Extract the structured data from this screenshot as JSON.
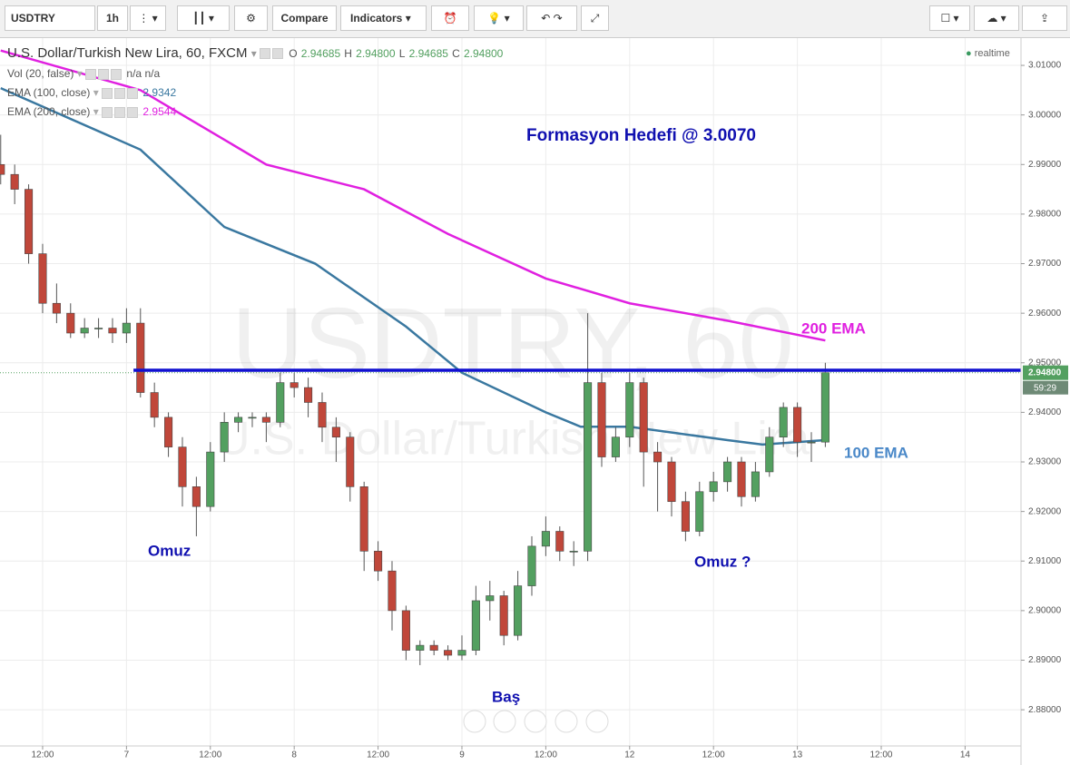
{
  "toolbar": {
    "symbol": "USDTRY",
    "interval": "1h",
    "compare": "Compare",
    "indicators": "Indicators"
  },
  "legend": {
    "title": "U.S. Dollar/Turkish New Lira, 60, FXCM",
    "o_label": "O",
    "o": "2.94685",
    "h_label": "H",
    "h": "2.94800",
    "l_label": "L",
    "l": "2.94685",
    "c_label": "C",
    "c": "2.94800",
    "vol": "Vol (20, false)",
    "vol_a": "n/a",
    "vol_b": "n/a",
    "ema100": "EMA (100, close)",
    "ema100_value": "2.9342",
    "ema200": "EMA (200, close)",
    "ema200_value": "2.9544",
    "realtime": "realtime"
  },
  "watermark": {
    "symbol": "USDTRY, 60",
    "name": "U.S. Dollar/Turkish New Lira"
  },
  "chart_data": {
    "type": "candlestick",
    "x": [
      6,
      8,
      10,
      12,
      14,
      16,
      18,
      20,
      22,
      24,
      26,
      28,
      30,
      32,
      34,
      36,
      38,
      40,
      42,
      44,
      46,
      48,
      50,
      52,
      54,
      56,
      58,
      60,
      62,
      64,
      66,
      68,
      70,
      72,
      74,
      76,
      78,
      80,
      82,
      84,
      86,
      88,
      90,
      92,
      94,
      96,
      98,
      100,
      102,
      104,
      106,
      108,
      110,
      112,
      114,
      116,
      118,
      120,
      122,
      124
    ],
    "open": [
      2.99,
      2.988,
      2.985,
      2.972,
      2.962,
      2.96,
      2.956,
      2.957,
      2.957,
      2.956,
      2.958,
      2.944,
      2.939,
      2.933,
      2.925,
      2.921,
      2.932,
      2.938,
      2.939,
      2.939,
      2.938,
      2.946,
      2.945,
      2.942,
      2.937,
      2.935,
      2.925,
      2.912,
      2.908,
      2.9,
      2.892,
      2.893,
      2.892,
      2.891,
      2.892,
      2.902,
      2.903,
      2.895,
      2.905,
      2.913,
      2.916,
      2.912,
      2.912,
      2.946,
      2.931,
      2.935,
      2.946,
      2.932,
      2.93,
      2.922,
      2.916,
      2.924,
      2.926,
      2.93,
      2.923,
      2.928,
      2.935,
      2.941,
      2.934,
      2.934
    ],
    "high": [
      2.996,
      2.99,
      2.986,
      2.974,
      2.966,
      2.962,
      2.959,
      2.959,
      2.959,
      2.961,
      2.961,
      2.946,
      2.94,
      2.935,
      2.927,
      2.934,
      2.94,
      2.94,
      2.94,
      2.94,
      2.948,
      2.948,
      2.947,
      2.944,
      2.939,
      2.936,
      2.926,
      2.914,
      2.91,
      2.901,
      2.894,
      2.894,
      2.893,
      2.895,
      2.905,
      2.906,
      2.904,
      2.908,
      2.915,
      2.919,
      2.917,
      2.914,
      2.96,
      2.948,
      2.937,
      2.948,
      2.947,
      2.934,
      2.931,
      2.924,
      2.926,
      2.928,
      2.931,
      2.931,
      2.93,
      2.937,
      2.942,
      2.942,
      2.936,
      2.95
    ],
    "low": [
      2.986,
      2.982,
      2.97,
      2.96,
      2.958,
      2.955,
      2.955,
      2.955,
      2.954,
      2.954,
      2.943,
      2.937,
      2.931,
      2.921,
      2.915,
      2.92,
      2.93,
      2.936,
      2.937,
      2.934,
      2.937,
      2.943,
      2.939,
      2.934,
      2.93,
      2.922,
      2.908,
      2.906,
      2.896,
      2.89,
      2.889,
      2.891,
      2.89,
      2.89,
      2.891,
      2.898,
      2.893,
      2.894,
      2.903,
      2.911,
      2.91,
      2.909,
      2.91,
      2.929,
      2.93,
      2.933,
      2.925,
      2.92,
      2.919,
      2.914,
      2.915,
      2.922,
      2.924,
      2.921,
      2.922,
      2.927,
      2.933,
      2.931,
      2.93,
      2.933
    ],
    "close": [
      2.988,
      2.985,
      2.972,
      2.962,
      2.96,
      2.956,
      2.957,
      2.957,
      2.956,
      2.958,
      2.944,
      2.939,
      2.933,
      2.925,
      2.921,
      2.932,
      2.938,
      2.939,
      2.939,
      2.938,
      2.946,
      2.945,
      2.942,
      2.937,
      2.935,
      2.925,
      2.912,
      2.908,
      2.9,
      2.892,
      2.893,
      2.892,
      2.891,
      2.892,
      2.902,
      2.903,
      2.895,
      2.905,
      2.913,
      2.916,
      2.912,
      2.912,
      2.946,
      2.931,
      2.935,
      2.946,
      2.932,
      2.93,
      2.922,
      2.916,
      2.924,
      2.926,
      2.93,
      2.923,
      2.928,
      2.935,
      2.941,
      2.934,
      2.934,
      2.948
    ],
    "up_color": "#53a060",
    "down_color": "#c0473a",
    "lines": [
      {
        "name": "EMA (200, close)",
        "color": "#e020e0",
        "x": [
          6,
          26,
          44,
          58,
          70,
          84,
          96,
          110,
          124
        ],
        "values": [
          3.013,
          3.005,
          2.99,
          2.985,
          2.976,
          2.967,
          2.962,
          2.9585,
          2.9545
        ]
      },
      {
        "name": "EMA (100, close)",
        "color": "#3a78a0",
        "x": [
          6,
          26,
          38,
          51,
          64,
          72,
          84,
          89,
          96,
          110,
          115,
          124
        ],
        "values": [
          3.0054,
          2.993,
          2.9774,
          2.97,
          2.9573,
          2.948,
          2.94,
          2.9371,
          2.9371,
          2.9344,
          2.9335,
          2.9344
        ]
      }
    ],
    "neckline": {
      "value": 2.9485,
      "x_start": 25,
      "color": "#1010d0"
    },
    "last_price": {
      "value": 2.948,
      "label": "2.94800"
    },
    "countdown": "59:29",
    "annotations": [
      {
        "text": "Formasyon Hedefi @ 3.0070",
        "color": "#1010b0"
      },
      {
        "text": "200 EMA",
        "color": "#e020e0"
      },
      {
        "text": "100 EMA",
        "color": "#4a88c8"
      },
      {
        "text": "Omuz",
        "color": "#1010b0"
      },
      {
        "text": "Omuz ?",
        "color": "#1010b0"
      },
      {
        "text": "Baş",
        "color": "#1010b0"
      }
    ],
    "xlim": [
      5.9,
      152
    ],
    "ylim": [
      2.8727,
      3.0155
    ],
    "xticks": [
      {
        "value": 12,
        "label": "12:00"
      },
      {
        "value": 24,
        "label": "7"
      },
      {
        "value": 36,
        "label": "12:00"
      },
      {
        "value": 48,
        "label": "8"
      },
      {
        "value": 60,
        "label": "12:00"
      },
      {
        "value": 72,
        "label": "9"
      },
      {
        "value": 84,
        "label": "12:00"
      },
      {
        "value": 96,
        "label": "12"
      },
      {
        "value": 108,
        "label": "12:00"
      },
      {
        "value": 120,
        "label": "13"
      },
      {
        "value": 132,
        "label": "12:00"
      },
      {
        "value": 144,
        "label": "14"
      }
    ],
    "yticks": [
      {
        "value": 2.88,
        "label": "2.88000"
      },
      {
        "value": 2.89,
        "label": "2.89000"
      },
      {
        "value": 2.9,
        "label": "2.90000"
      },
      {
        "value": 2.91,
        "label": "2.91000"
      },
      {
        "value": 2.92,
        "label": "2.92000"
      },
      {
        "value": 2.93,
        "label": "2.93000"
      },
      {
        "value": 2.94,
        "label": "2.94000"
      },
      {
        "value": 2.95,
        "label": "2.95000"
      },
      {
        "value": 2.96,
        "label": "2.96000"
      },
      {
        "value": 2.97,
        "label": "2.97000"
      },
      {
        "value": 2.98,
        "label": "2.98000"
      },
      {
        "value": 2.99,
        "label": "2.99000"
      },
      {
        "value": 3.0,
        "label": "3.00000"
      },
      {
        "value": 3.01,
        "label": "3.01000"
      }
    ],
    "grid": true
  }
}
